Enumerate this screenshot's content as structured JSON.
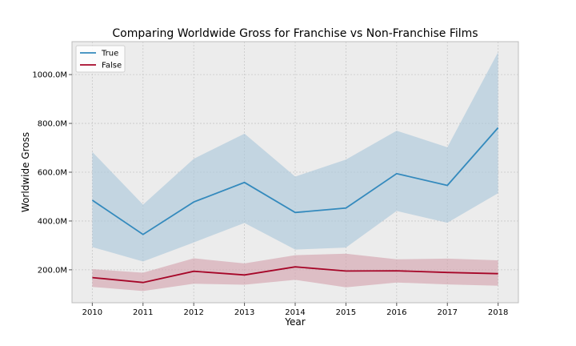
{
  "chart_data": {
    "type": "line",
    "title": "Comparing Worldwide Gross for Franchise vs Non-Franchise Films",
    "xlabel": "Year",
    "ylabel": "Worldwide Gross",
    "x": [
      2010,
      2011,
      2012,
      2013,
      2014,
      2015,
      2016,
      2017,
      2018
    ],
    "ylim": [
      65,
      1135
    ],
    "xlim": [
      2009.6,
      2018.4
    ],
    "yticks": [
      200,
      400,
      600,
      800,
      1000
    ],
    "ytick_labels": [
      "200.0M",
      "400.0M",
      "600.0M",
      "800.0M",
      "1000.0M"
    ],
    "xtick_labels": [
      "2010",
      "2011",
      "2012",
      "2013",
      "2014",
      "2015",
      "2016",
      "2017",
      "2018"
    ],
    "grid": true,
    "legend_position": "top-left",
    "series": [
      {
        "name": "True",
        "color": "#348abd",
        "band_color": "#a9c7da",
        "values": [
          485,
          345,
          478,
          558,
          435,
          453,
          594,
          546,
          782
        ],
        "lower": [
          293,
          234,
          312,
          392,
          283,
          291,
          441,
          393,
          514
        ],
        "upper": [
          683,
          467,
          655,
          758,
          582,
          652,
          770,
          702,
          1092
        ]
      },
      {
        "name": "False",
        "color": "#a60628",
        "band_color": "#d3a0ab",
        "values": [
          168,
          148,
          194,
          179,
          212,
          195,
          196,
          189,
          184
        ],
        "lower": [
          130,
          113,
          143,
          139,
          159,
          128,
          148,
          140,
          135
        ],
        "upper": [
          203,
          188,
          247,
          226,
          260,
          266,
          243,
          246,
          239
        ]
      }
    ]
  }
}
